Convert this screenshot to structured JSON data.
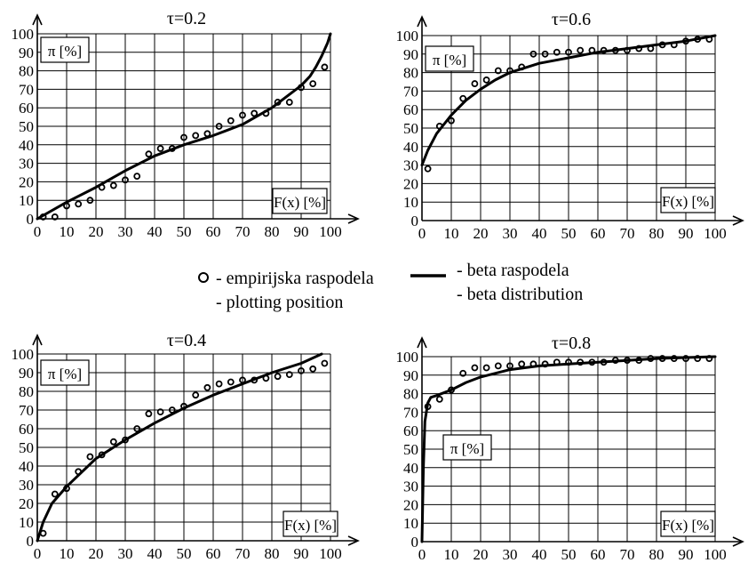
{
  "legend": {
    "empirical_line1": "- empirijska raspodela",
    "empirical_line2": "- plotting position",
    "beta_line1": "- beta raspodela",
    "beta_line2": "- beta distribution"
  },
  "chart_data": [
    {
      "type": "line",
      "title": "τ=0.2",
      "xlabel": "F(x) [%]",
      "ylabel": "π [%]",
      "xlim": [
        0,
        100
      ],
      "ylim": [
        0,
        100
      ],
      "xticks": [
        "0",
        "10",
        "20",
        "30",
        "40",
        "50",
        "60",
        "70",
        "80",
        "90",
        "100"
      ],
      "yticks": [
        "0",
        "10",
        "20",
        "30",
        "40",
        "50",
        "60",
        "70",
        "80",
        "90",
        "100"
      ],
      "grid": true,
      "series": [
        {
          "kind": "scatter",
          "x": [
            2,
            6,
            10,
            14,
            18,
            22,
            26,
            30,
            34,
            38,
            42,
            46,
            50,
            54,
            58,
            62,
            66,
            70,
            74,
            78,
            82,
            86,
            90,
            94,
            98
          ],
          "y": [
            1,
            1,
            7,
            8,
            10,
            17,
            18,
            21,
            23,
            35,
            38,
            38,
            44,
            45,
            46,
            50,
            53,
            56,
            57,
            57,
            63,
            63,
            71,
            73,
            82
          ]
        },
        {
          "kind": "line",
          "x": [
            0,
            10,
            20,
            30,
            40,
            50,
            60,
            70,
            80,
            85,
            90,
            93,
            95,
            97,
            99,
            100
          ],
          "y": [
            0,
            9,
            17,
            26,
            34,
            40,
            45,
            51,
            60,
            66,
            72,
            77,
            82,
            88,
            95,
            100
          ]
        }
      ]
    },
    {
      "type": "line",
      "title": "τ=0.6",
      "xlabel": "F(x) [%]",
      "ylabel": "π [%]",
      "xlim": [
        0,
        100
      ],
      "ylim": [
        0,
        100
      ],
      "xticks": [
        "0",
        "10",
        "20",
        "30",
        "40",
        "50",
        "60",
        "70",
        "80",
        "90",
        "100"
      ],
      "yticks": [
        "0",
        "10",
        "20",
        "30",
        "40",
        "50",
        "60",
        "70",
        "80",
        "90",
        "100"
      ],
      "grid": true,
      "series": [
        {
          "kind": "scatter",
          "x": [
            2,
            6,
            10,
            14,
            18,
            22,
            26,
            30,
            34,
            38,
            42,
            46,
            50,
            54,
            58,
            62,
            66,
            70,
            74,
            78,
            82,
            86,
            90,
            94,
            98
          ],
          "y": [
            28,
            51,
            54,
            66,
            74,
            76,
            81,
            81,
            83,
            90,
            90,
            91,
            91,
            92,
            92,
            92,
            92,
            92,
            93,
            93,
            95,
            95,
            97,
            98,
            98
          ]
        },
        {
          "kind": "line",
          "x": [
            0,
            2,
            5,
            10,
            15,
            20,
            25,
            30,
            40,
            50,
            60,
            70,
            80,
            90,
            100
          ],
          "y": [
            30,
            38,
            47,
            57,
            65,
            71,
            76,
            80,
            85,
            88,
            91,
            93,
            95,
            97,
            100
          ]
        }
      ]
    },
    {
      "type": "line",
      "title": "τ=0.4",
      "xlabel": "F(x) [%]",
      "ylabel": "π [%]",
      "xlim": [
        0,
        100
      ],
      "ylim": [
        0,
        100
      ],
      "xticks": [
        "0",
        "10",
        "20",
        "30",
        "40",
        "50",
        "60",
        "70",
        "80",
        "90",
        "100"
      ],
      "yticks": [
        "0",
        "10",
        "20",
        "30",
        "40",
        "50",
        "60",
        "70",
        "80",
        "90",
        "100"
      ],
      "grid": true,
      "series": [
        {
          "kind": "scatter",
          "x": [
            2,
            6,
            10,
            14,
            18,
            22,
            26,
            30,
            34,
            38,
            42,
            46,
            50,
            54,
            58,
            62,
            66,
            70,
            74,
            78,
            82,
            86,
            90,
            94,
            98
          ],
          "y": [
            4,
            25,
            28,
            37,
            45,
            46,
            53,
            54,
            60,
            68,
            69,
            70,
            72,
            78,
            82,
            84,
            85,
            86,
            86,
            87,
            88,
            89,
            91,
            92,
            95
          ]
        },
        {
          "kind": "line",
          "x": [
            0,
            2,
            5,
            10,
            20,
            30,
            40,
            50,
            60,
            70,
            80,
            90,
            97
          ],
          "y": [
            0,
            10,
            20,
            29,
            44,
            54,
            63,
            71,
            78,
            84,
            90,
            95,
            100
          ]
        }
      ]
    },
    {
      "type": "line",
      "title": "τ=0.8",
      "xlabel": "F(x) [%]",
      "ylabel": "π [%]",
      "xlim": [
        0,
        100
      ],
      "ylim": [
        0,
        100
      ],
      "xticks": [
        "0",
        "10",
        "20",
        "30",
        "40",
        "50",
        "60",
        "70",
        "80",
        "90",
        "100"
      ],
      "yticks": [
        "0",
        "10",
        "20",
        "30",
        "40",
        "50",
        "60",
        "70",
        "80",
        "90",
        "100"
      ],
      "grid": true,
      "series": [
        {
          "kind": "scatter",
          "x": [
            2,
            6,
            10,
            14,
            18,
            22,
            26,
            30,
            34,
            38,
            42,
            46,
            50,
            54,
            58,
            62,
            66,
            70,
            74,
            78,
            82,
            86,
            90,
            94,
            98
          ],
          "y": [
            73,
            77,
            82,
            91,
            94,
            94,
            95,
            95,
            96,
            96,
            96,
            97,
            97,
            97,
            97,
            97,
            98,
            98,
            98,
            99,
            99,
            99,
            99,
            99,
            99
          ]
        },
        {
          "kind": "line",
          "x": [
            0,
            0.5,
            1,
            2,
            3,
            5,
            10,
            15,
            20,
            30,
            40,
            50,
            60,
            70,
            80,
            90,
            100
          ],
          "y": [
            0,
            40,
            65,
            75,
            78,
            79,
            82,
            86,
            89,
            93,
            95,
            96,
            97,
            98,
            99,
            99.5,
            100
          ]
        }
      ]
    }
  ]
}
